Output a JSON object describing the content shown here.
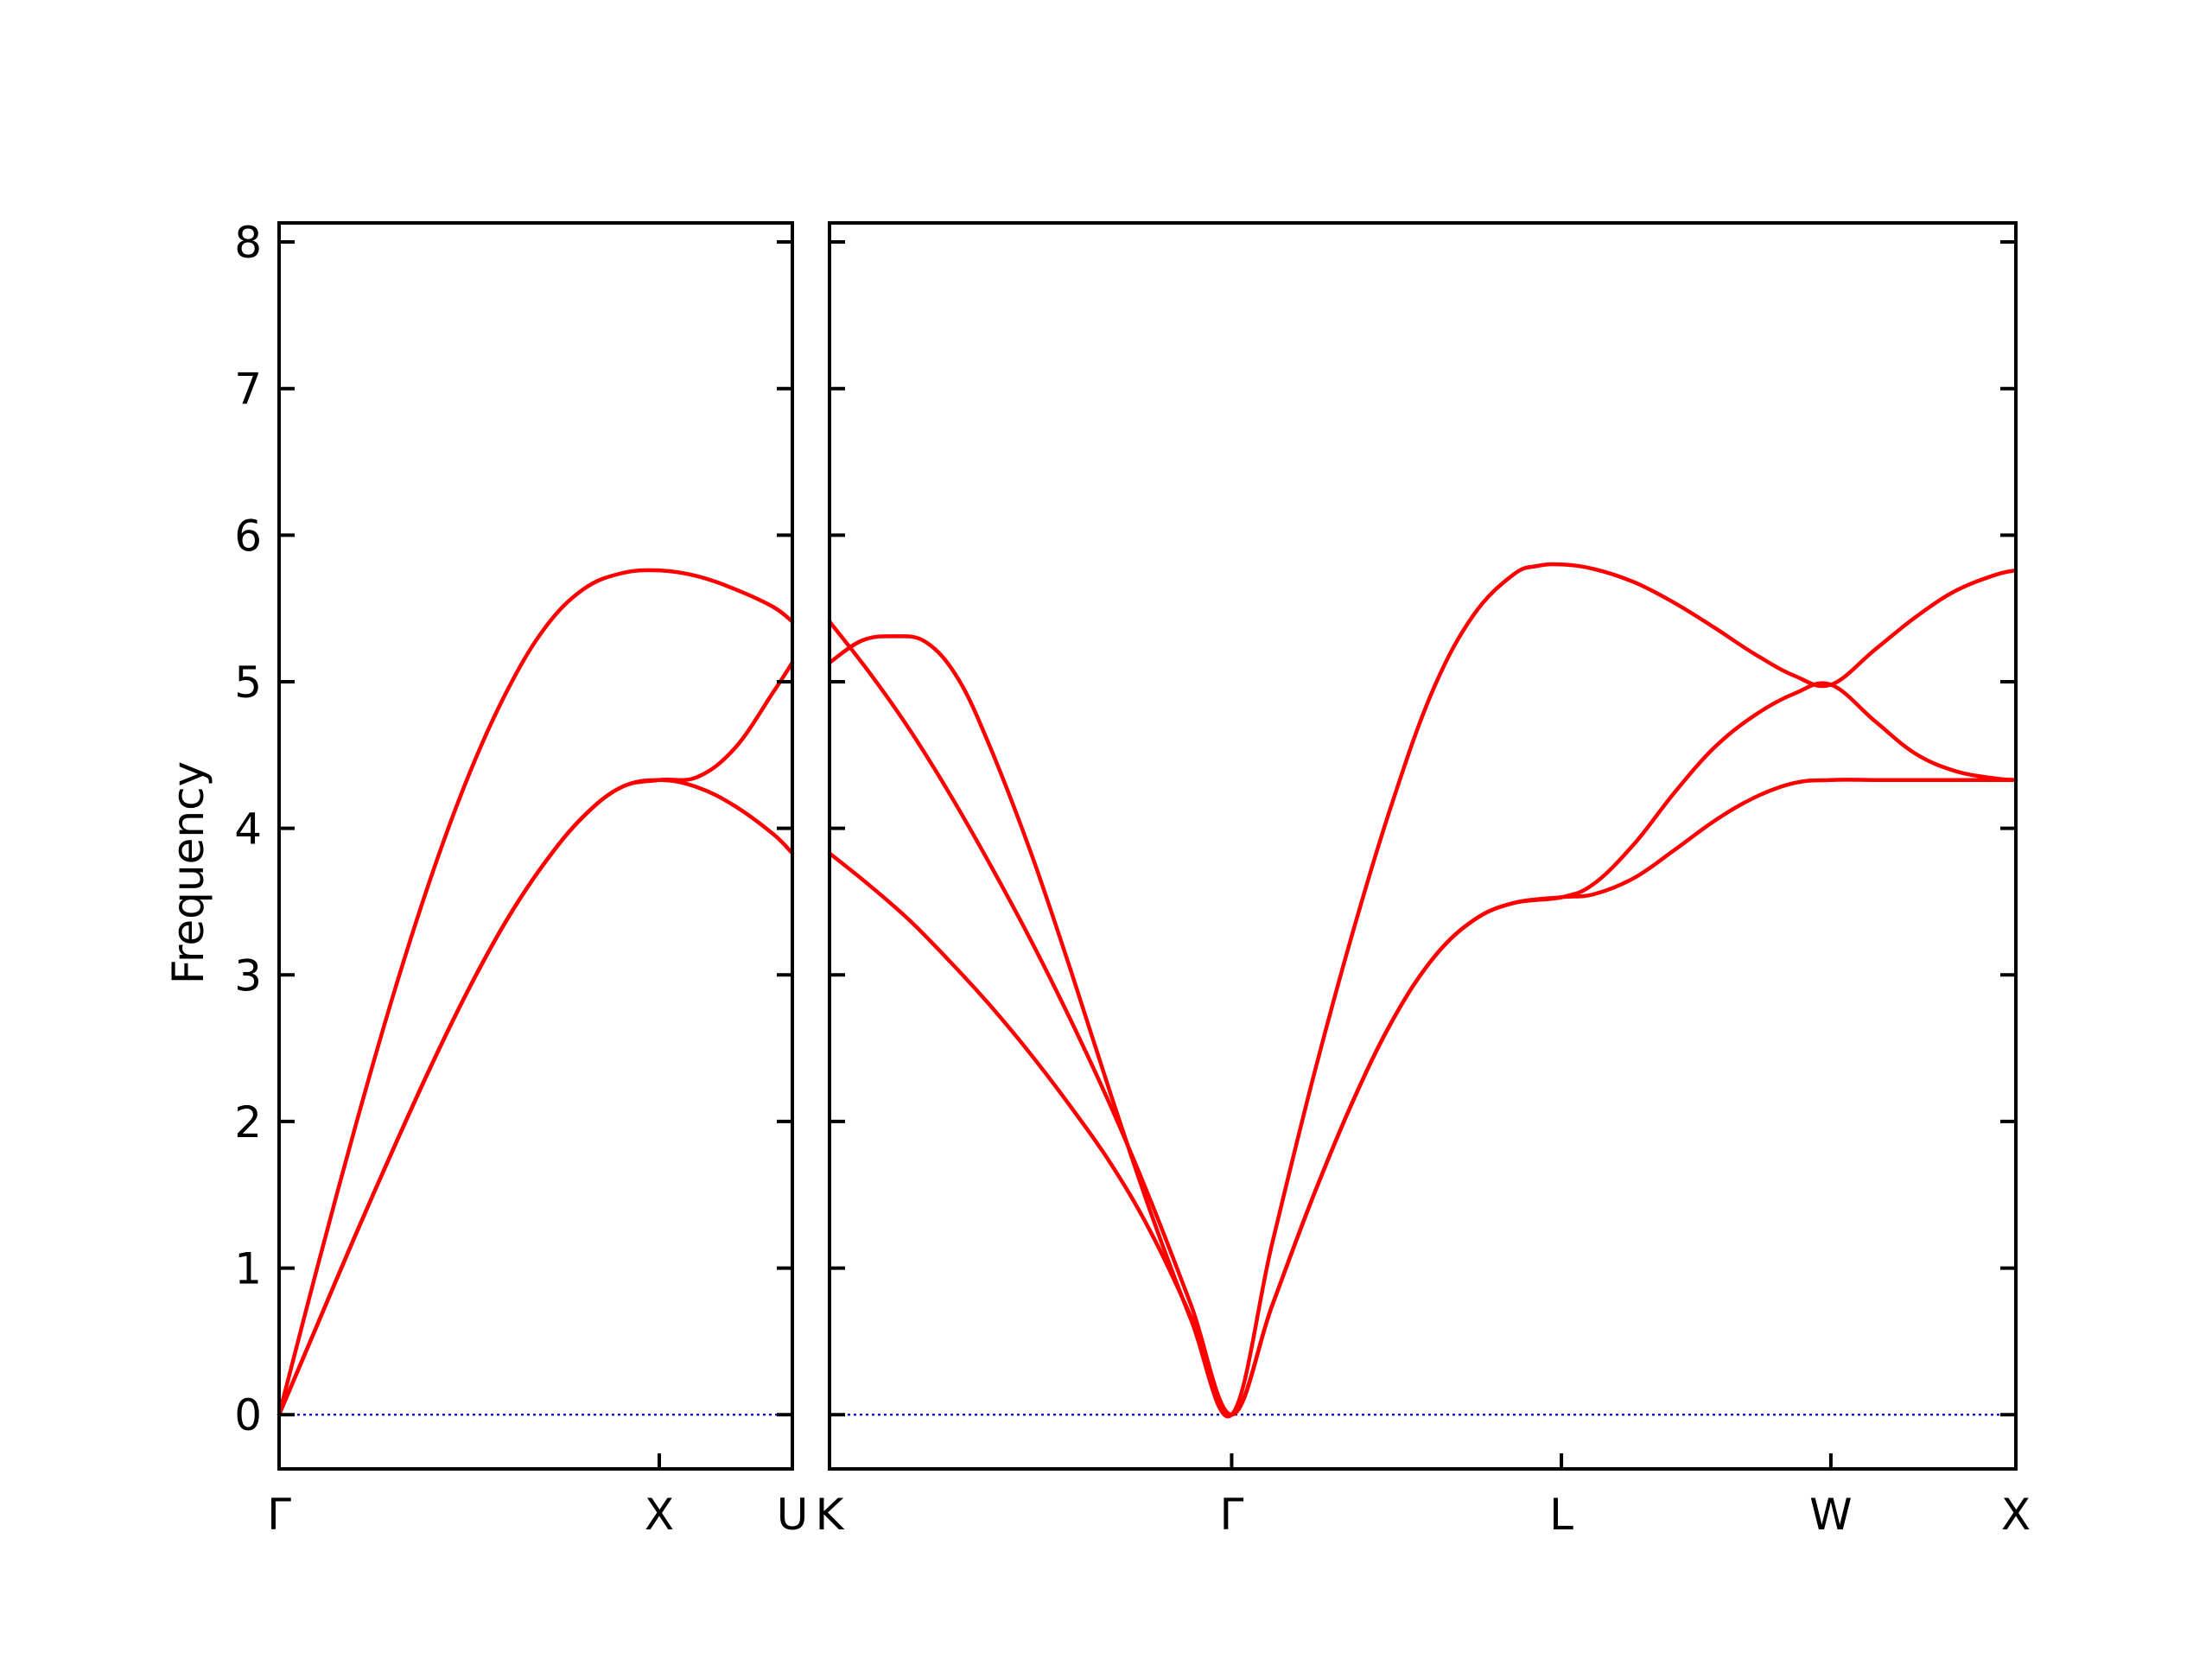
{
  "chart_data": {
    "type": "line",
    "title": "",
    "ylabel": "Frequency",
    "ylim": [
      -0.37,
      8.13
    ],
    "yticks": [
      0,
      1,
      2,
      3,
      4,
      5,
      6,
      7,
      8
    ],
    "grid": false,
    "colors": {
      "band": "#ff0000",
      "zero": "#0000cc",
      "axes": "#000000"
    },
    "panels": [
      {
        "name": "left",
        "xlim": [
          0,
          1.35
        ],
        "ticks": [
          {
            "x": 0,
            "label": "Γ"
          },
          {
            "x": 1.0,
            "label": "X"
          },
          {
            "x": 1.35,
            "label": "U"
          }
        ],
        "series": [
          {
            "values": [
              [
                0,
                0
              ],
              [
                0.1,
                1.0
              ],
              [
                0.2,
                1.96
              ],
              [
                0.3,
                2.86
              ],
              [
                0.4,
                3.67
              ],
              [
                0.5,
                4.37
              ],
              [
                0.6,
                4.94
              ],
              [
                0.7,
                5.37
              ],
              [
                0.8,
                5.63
              ],
              [
                0.9,
                5.74
              ],
              [
                1.0,
                5.76
              ],
              [
                1.1,
                5.72
              ],
              [
                1.2,
                5.63
              ],
              [
                1.3,
                5.51
              ],
              [
                1.35,
                5.41
              ]
            ]
          },
          {
            "values": [
              [
                0,
                0
              ],
              [
                0.1,
                0.61
              ],
              [
                0.2,
                1.22
              ],
              [
                0.3,
                1.81
              ],
              [
                0.4,
                2.38
              ],
              [
                0.5,
                2.91
              ],
              [
                0.6,
                3.38
              ],
              [
                0.7,
                3.77
              ],
              [
                0.8,
                4.08
              ],
              [
                0.9,
                4.28
              ],
              [
                1.0,
                4.33
              ],
              [
                1.1,
                4.35
              ],
              [
                1.2,
                4.55
              ],
              [
                1.3,
                4.93
              ],
              [
                1.35,
                5.13
              ]
            ]
          },
          {
            "values": [
              [
                0,
                0
              ],
              [
                0.1,
                0.61
              ],
              [
                0.2,
                1.22
              ],
              [
                0.3,
                1.81
              ],
              [
                0.4,
                2.38
              ],
              [
                0.5,
                2.91
              ],
              [
                0.6,
                3.38
              ],
              [
                0.7,
                3.77
              ],
              [
                0.8,
                4.08
              ],
              [
                0.9,
                4.28
              ],
              [
                1.0,
                4.33
              ],
              [
                1.1,
                4.28
              ],
              [
                1.2,
                4.15
              ],
              [
                1.3,
                3.96
              ],
              [
                1.35,
                3.83
              ]
            ]
          }
        ],
        "reference_line": 0
      },
      {
        "name": "right",
        "xlim": [
          0,
          2.95
        ],
        "ticks": [
          {
            "x": 0,
            "label": "K"
          },
          {
            "x": 1.0,
            "label": "Γ"
          },
          {
            "x": 1.82,
            "label": "L"
          },
          {
            "x": 2.49,
            "label": "W"
          },
          {
            "x": 2.95,
            "label": "X"
          }
        ],
        "series": [
          {
            "values": [
              [
                0,
                5.13
              ],
              [
                0.08,
                5.28
              ],
              [
                0.16,
                5.31
              ],
              [
                0.24,
                5.27
              ],
              [
                0.32,
                5.02
              ],
              [
                0.4,
                4.55
              ],
              [
                0.5,
                3.84
              ],
              [
                0.6,
                3.03
              ],
              [
                0.7,
                2.18
              ],
              [
                0.8,
                1.37
              ],
              [
                0.9,
                0.64
              ],
              [
                1.0,
                0
              ],
              [
                1.1,
                1.16
              ],
              [
                1.2,
                2.27
              ],
              [
                1.3,
                3.28
              ],
              [
                1.4,
                4.18
              ],
              [
                1.5,
                4.94
              ],
              [
                1.6,
                5.45
              ],
              [
                1.7,
                5.73
              ],
              [
                1.76,
                5.79
              ],
              [
                1.82,
                5.8
              ],
              [
                1.9,
                5.77
              ],
              [
                2.0,
                5.68
              ],
              [
                2.1,
                5.54
              ],
              [
                2.2,
                5.37
              ],
              [
                2.3,
                5.19
              ],
              [
                2.4,
                5.04
              ],
              [
                2.49,
                4.98
              ],
              [
                2.6,
                5.22
              ],
              [
                2.7,
                5.44
              ],
              [
                2.8,
                5.62
              ],
              [
                2.9,
                5.73
              ],
              [
                2.95,
                5.76
              ]
            ]
          },
          {
            "values": [
              [
                0,
                5.41
              ],
              [
                0.1,
                5.06
              ],
              [
                0.2,
                4.67
              ],
              [
                0.3,
                4.23
              ],
              [
                0.4,
                3.75
              ],
              [
                0.5,
                3.24
              ],
              [
                0.6,
                2.69
              ],
              [
                0.7,
                2.1
              ],
              [
                0.8,
                1.45
              ],
              [
                0.9,
                0.74
              ],
              [
                1.0,
                0
              ],
              [
                1.1,
                0.74
              ],
              [
                1.2,
                1.47
              ],
              [
                1.3,
                2.13
              ],
              [
                1.4,
                2.69
              ],
              [
                1.5,
                3.11
              ],
              [
                1.6,
                3.37
              ],
              [
                1.7,
                3.49
              ],
              [
                1.82,
                3.53
              ],
              [
                1.9,
                3.62
              ],
              [
                2.0,
                3.89
              ],
              [
                2.1,
                4.24
              ],
              [
                2.2,
                4.55
              ],
              [
                2.3,
                4.77
              ],
              [
                2.4,
                4.92
              ],
              [
                2.49,
                4.98
              ],
              [
                2.6,
                4.73
              ],
              [
                2.7,
                4.51
              ],
              [
                2.8,
                4.39
              ],
              [
                2.9,
                4.34
              ],
              [
                2.95,
                4.33
              ]
            ]
          },
          {
            "values": [
              [
                0,
                3.83
              ],
              [
                0.1,
                3.61
              ],
              [
                0.2,
                3.37
              ],
              [
                0.3,
                3.09
              ],
              [
                0.4,
                2.79
              ],
              [
                0.5,
                2.46
              ],
              [
                0.6,
                2.1
              ],
              [
                0.7,
                1.71
              ],
              [
                0.8,
                1.24
              ],
              [
                0.9,
                0.66
              ],
              [
                1.0,
                0
              ],
              [
                1.1,
                0.74
              ],
              [
                1.2,
                1.47
              ],
              [
                1.3,
                2.13
              ],
              [
                1.4,
                2.69
              ],
              [
                1.5,
                3.11
              ],
              [
                1.6,
                3.37
              ],
              [
                1.7,
                3.49
              ],
              [
                1.82,
                3.53
              ],
              [
                1.9,
                3.55
              ],
              [
                2.0,
                3.66
              ],
              [
                2.1,
                3.85
              ],
              [
                2.2,
                4.05
              ],
              [
                2.3,
                4.21
              ],
              [
                2.4,
                4.31
              ],
              [
                2.49,
                4.33
              ],
              [
                2.6,
                4.33
              ],
              [
                2.7,
                4.33
              ],
              [
                2.8,
                4.33
              ],
              [
                2.9,
                4.33
              ],
              [
                2.95,
                4.33
              ]
            ]
          }
        ],
        "reference_line": 0
      }
    ]
  }
}
